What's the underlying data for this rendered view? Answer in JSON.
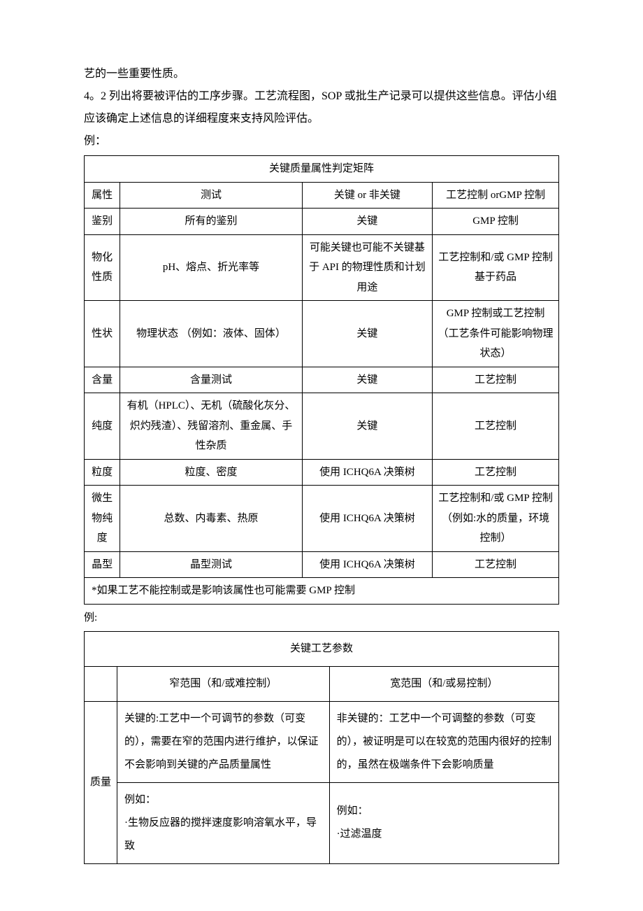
{
  "paragraphs": {
    "p1": "艺的一些重要性质。",
    "p2": "4。2 列出将要被评估的工序步骤。工艺流程图，SOP 或批生产记录可以提供这些信息。评估小组应该确定上述信息的详细程度来支持风险评估。",
    "p3": "例："
  },
  "table1": {
    "title": "关键质量属性判定矩阵",
    "headers": [
      "属性",
      "测试",
      "关键 or 非关键",
      "工艺控制 orGMP 控制"
    ],
    "rows": [
      [
        "鉴别",
        "所有的鉴别",
        "关键",
        "GMP 控制"
      ],
      [
        "物化性质",
        "pH、熔点、折光率等",
        "可能关键也可能不关键基于 API 的物理性质和计划用途",
        "工艺控制和/或 GMP 控制基于药品"
      ],
      [
        "性状",
        "物理状态\n（例如：液体、固体）",
        "关键",
        "GMP 控制或工艺控制（工艺条件可能影响物理状态）"
      ],
      [
        "含量",
        "含量测试",
        "关键",
        "工艺控制"
      ],
      [
        "纯度",
        "有机（HPLC）、无机（硫酸化灰分、炽灼残渣）、残留溶剂、重金属、手性杂质",
        "关键",
        "工艺控制"
      ],
      [
        "粒度",
        "粒度、密度",
        "使用 ICHQ6A 决策树",
        "工艺控制"
      ],
      [
        "微生物纯度",
        "总数、内毒素、热原",
        "使用 ICHQ6A 决策树",
        "工艺控制和/或 GMP 控制（例如:水的质量，环境控制）"
      ],
      [
        "晶型",
        "晶型测试",
        "使用 ICHQ6A 决策树",
        "工艺控制"
      ]
    ],
    "footnote": "*如果工艺不能控制或是影响该属性也可能需要 GMP 控制"
  },
  "label2": "例:",
  "table2": {
    "title": "关键工艺参数",
    "col1": "窄范围（和/或难控制）",
    "col2": "宽范围（和/或易控制）",
    "sidelabel": "质量",
    "cell1a": "关键的:工艺中一个可调节的参数（可变的），需要在窄的范围内进行维护，以保证不会影响到关键的产品质量属性",
    "cell1b": "非关键的：工艺中一个可调整的参数（可变的），被证明是可以在较宽的范围内很好的控制的，虽然在极端条件下会影响质量",
    "cell2a_line1": "例如：",
    "cell2a_line2": "·生物反应器的搅拌速度影响溶氧水平，导致",
    "cell2b_line1": "例如：",
    "cell2b_line2": "·过滤温度"
  }
}
